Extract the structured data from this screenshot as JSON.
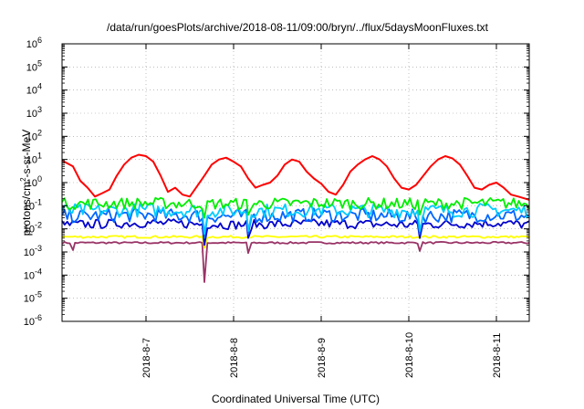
{
  "chart_data": {
    "type": "line",
    "title": "/data/run/goesPlots/archive/2018-08-11/09:00/bryn/../flux/5daysMoonFluxes.txt",
    "xlabel": "Coordinated Universal Time (UTC)",
    "ylabel": {
      "pre": "protons/cm",
      "sup": "2",
      "post": "-s-sr-MeV"
    },
    "y_scale": "log",
    "ylim": [
      1e-06,
      1000000.0
    ],
    "y_ticks": [
      {
        "base": "10",
        "exp": "-6",
        "value": 1e-06
      },
      {
        "base": "10",
        "exp": "-5",
        "value": 1e-05
      },
      {
        "base": "10",
        "exp": "-4",
        "value": 0.0001
      },
      {
        "base": "10",
        "exp": "-3",
        "value": 0.001
      },
      {
        "base": "10",
        "exp": "-2",
        "value": 0.01
      },
      {
        "base": "10",
        "exp": "-1",
        "value": 0.1
      },
      {
        "base": "10",
        "exp": "0",
        "value": 1
      },
      {
        "base": "10",
        "exp": "1",
        "value": 10
      },
      {
        "base": "10",
        "exp": "2",
        "value": 100
      },
      {
        "base": "10",
        "exp": "3",
        "value": 1000
      },
      {
        "base": "10",
        "exp": "4",
        "value": 10000
      },
      {
        "base": "10",
        "exp": "5",
        "value": 100000
      },
      {
        "base": "10",
        "exp": "6",
        "value": 1000000
      }
    ],
    "xlim": [
      "2018-08-06T01:00",
      "2018-08-11T09:00"
    ],
    "x_ticks": [
      {
        "label": "2018-8-7",
        "value": "2018-08-07T00:00"
      },
      {
        "label": "2018-8-8",
        "value": "2018-08-08T00:00"
      },
      {
        "label": "2018-8-9",
        "value": "2018-08-09T00:00"
      },
      {
        "label": "2018-8-10",
        "value": "2018-08-10T00:00"
      },
      {
        "label": "2018-8-11",
        "value": "2018-08-11T00:00"
      }
    ],
    "grid": true,
    "legend": "none",
    "series": [
      {
        "color": "#ff0000",
        "x": [
          "2018-08-06T01:00",
          "2018-08-06T04:00",
          "2018-08-06T06:00",
          "2018-08-06T08:00",
          "2018-08-06T10:00",
          "2018-08-06T12:00",
          "2018-08-06T14:00",
          "2018-08-06T16:00",
          "2018-08-06T18:00",
          "2018-08-06T20:00",
          "2018-08-06T22:00",
          "2018-08-07T00:00",
          "2018-08-07T02:00",
          "2018-08-07T04:00",
          "2018-08-07T06:00",
          "2018-08-07T08:00",
          "2018-08-07T10:00",
          "2018-08-07T12:00",
          "2018-08-07T14:00",
          "2018-08-07T16:00",
          "2018-08-07T18:00",
          "2018-08-07T20:00",
          "2018-08-07T22:00",
          "2018-08-08T00:00",
          "2018-08-08T02:00",
          "2018-08-08T04:00",
          "2018-08-08T06:00",
          "2018-08-08T08:00",
          "2018-08-08T10:00",
          "2018-08-08T12:00",
          "2018-08-08T14:00",
          "2018-08-08T16:00",
          "2018-08-08T18:00",
          "2018-08-08T20:00",
          "2018-08-08T22:00",
          "2018-08-09T00:00",
          "2018-08-09T02:00",
          "2018-08-09T04:00",
          "2018-08-09T06:00",
          "2018-08-09T08:00",
          "2018-08-09T10:00",
          "2018-08-09T12:00",
          "2018-08-09T14:00",
          "2018-08-09T16:00",
          "2018-08-09T18:00",
          "2018-08-09T20:00",
          "2018-08-09T22:00",
          "2018-08-10T00:00",
          "2018-08-10T02:00",
          "2018-08-10T04:00",
          "2018-08-10T06:00",
          "2018-08-10T08:00",
          "2018-08-10T10:00",
          "2018-08-10T12:00",
          "2018-08-10T14:00",
          "2018-08-10T16:00",
          "2018-08-10T18:00",
          "2018-08-10T20:00",
          "2018-08-10T22:00",
          "2018-08-11T00:00",
          "2018-08-11T02:00",
          "2018-08-11T04:00",
          "2018-08-11T06:00",
          "2018-08-11T08:00",
          "2018-08-11T09:00"
        ],
        "y": [
          9,
          5,
          1.2,
          0.6,
          0.25,
          0.35,
          0.5,
          2,
          6,
          12,
          16,
          14,
          8,
          2,
          0.4,
          0.6,
          0.3,
          0.25,
          0.7,
          2,
          6,
          10,
          12,
          8,
          5,
          1.5,
          0.6,
          0.8,
          1,
          2,
          6,
          10,
          8,
          3,
          1.5,
          0.9,
          0.4,
          0.3,
          0.8,
          3,
          6,
          10,
          14,
          10,
          5,
          1.5,
          0.6,
          0.5,
          0.8,
          2,
          5,
          10,
          14,
          11,
          6,
          2,
          0.6,
          0.5,
          0.8,
          1,
          0.6,
          0.3,
          0.25,
          0.2,
          0.18
        ]
      },
      {
        "color": "#00ee00",
        "x": [
          "2018-08-06T01:00",
          "2018-08-07T00:00",
          "2018-08-08T00:00",
          "2018-08-09T00:00",
          "2018-08-10T00:00",
          "2018-08-11T00:00",
          "2018-08-11T09:00"
        ],
        "y": [
          0.12,
          0.13,
          0.12,
          0.13,
          0.12,
          0.13,
          0.12
        ],
        "jitter": 0.5,
        "dips": [
          {
            "x": "2018-08-07T16:00",
            "y": 0.03
          },
          {
            "x": "2018-08-08T04:00",
            "y": 0.04
          },
          {
            "x": "2018-08-10T03:00",
            "y": 0.04
          }
        ]
      },
      {
        "color": "#00ccff",
        "x": [
          "2018-08-06T01:00",
          "2018-08-07T00:00",
          "2018-08-08T00:00",
          "2018-08-09T00:00",
          "2018-08-10T00:00",
          "2018-08-11T00:00",
          "2018-08-11T09:00"
        ],
        "y": [
          0.06,
          0.065,
          0.06,
          0.065,
          0.06,
          0.065,
          0.06
        ],
        "jitter": 0.6,
        "dips": [
          {
            "x": "2018-08-07T16:00",
            "y": 0.006
          },
          {
            "x": "2018-08-08T04:00",
            "y": 0.008
          },
          {
            "x": "2018-08-10T03:00",
            "y": 0.008
          }
        ]
      },
      {
        "color": "#0066ff",
        "x": [
          "2018-08-06T01:00",
          "2018-08-07T00:00",
          "2018-08-08T00:00",
          "2018-08-09T00:00",
          "2018-08-10T00:00",
          "2018-08-11T00:00",
          "2018-08-11T09:00"
        ],
        "y": [
          0.035,
          0.04,
          0.035,
          0.04,
          0.035,
          0.04,
          0.035
        ],
        "jitter": 0.6,
        "dips": [
          {
            "x": "2018-08-07T16:00",
            "y": 0.004
          },
          {
            "x": "2018-08-08T04:00",
            "y": 0.006
          },
          {
            "x": "2018-08-10T03:00",
            "y": 0.006
          }
        ]
      },
      {
        "color": "#0000cc",
        "x": [
          "2018-08-06T01:00",
          "2018-08-07T00:00",
          "2018-08-08T00:00",
          "2018-08-09T00:00",
          "2018-08-10T00:00",
          "2018-08-11T00:00",
          "2018-08-11T09:00"
        ],
        "y": [
          0.015,
          0.018,
          0.015,
          0.017,
          0.015,
          0.018,
          0.015
        ],
        "jitter": 0.4,
        "dips": [
          {
            "x": "2018-08-07T16:00",
            "y": 0.002
          },
          {
            "x": "2018-08-08T04:00",
            "y": 0.004
          },
          {
            "x": "2018-08-10T03:00",
            "y": 0.004
          }
        ]
      },
      {
        "color": "#ffff00",
        "x": [
          "2018-08-06T01:00",
          "2018-08-07T00:00",
          "2018-08-08T00:00",
          "2018-08-09T00:00",
          "2018-08-10T00:00",
          "2018-08-11T00:00",
          "2018-08-11T09:00"
        ],
        "y": [
          0.0045,
          0.0045,
          0.0045,
          0.0045,
          0.0045,
          0.0045,
          0.0045
        ],
        "jitter": 0.1,
        "dips": [
          {
            "x": "2018-08-07T16:00",
            "y": 0.0015
          }
        ]
      },
      {
        "color": "#993366",
        "x": [
          "2018-08-06T01:00",
          "2018-08-07T00:00",
          "2018-08-08T00:00",
          "2018-08-09T00:00",
          "2018-08-10T00:00",
          "2018-08-11T00:00",
          "2018-08-11T09:00"
        ],
        "y": [
          0.0025,
          0.0025,
          0.0025,
          0.0025,
          0.0025,
          0.0025,
          0.0025
        ],
        "jitter": 0.08,
        "dips": [
          {
            "x": "2018-08-06T04:00",
            "y": 0.0012
          },
          {
            "x": "2018-08-07T16:00",
            "y": 5e-05
          },
          {
            "x": "2018-08-08T04:00",
            "y": 0.0009
          },
          {
            "x": "2018-08-10T03:00",
            "y": 0.0011
          }
        ]
      }
    ]
  }
}
